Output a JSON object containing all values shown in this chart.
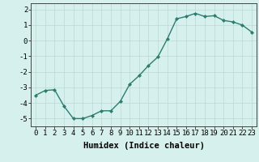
{
  "x": [
    0,
    1,
    2,
    3,
    4,
    5,
    6,
    7,
    8,
    9,
    10,
    11,
    12,
    13,
    14,
    15,
    16,
    17,
    18,
    19,
    20,
    21,
    22,
    23
  ],
  "y": [
    -3.5,
    -3.2,
    -3.15,
    -4.2,
    -5.0,
    -5.0,
    -4.8,
    -4.5,
    -4.5,
    -3.9,
    -2.8,
    -2.25,
    -1.6,
    -1.05,
    0.1,
    1.4,
    1.55,
    1.75,
    1.55,
    1.6,
    1.3,
    1.2,
    1.0,
    0.55
  ],
  "line_color": "#2d7d6f",
  "marker": "D",
  "marker_size": 2.0,
  "bg_color": "#d6f0ed",
  "grid_color": "#b8d8d4",
  "xlabel": "Humidex (Indice chaleur)",
  "ylim": [
    -5.5,
    2.4
  ],
  "xlim": [
    -0.5,
    23.5
  ],
  "yticks": [
    -5,
    -4,
    -3,
    -2,
    -1,
    0,
    1,
    2
  ],
  "xtick_labels": [
    "0",
    "1",
    "2",
    "3",
    "4",
    "5",
    "6",
    "7",
    "8",
    "9",
    "10",
    "11",
    "12",
    "13",
    "14",
    "15",
    "16",
    "17",
    "18",
    "19",
    "20",
    "21",
    "22",
    "23"
  ],
  "xlabel_fontsize": 7.5,
  "tick_fontsize": 6.5,
  "line_width": 1.0
}
